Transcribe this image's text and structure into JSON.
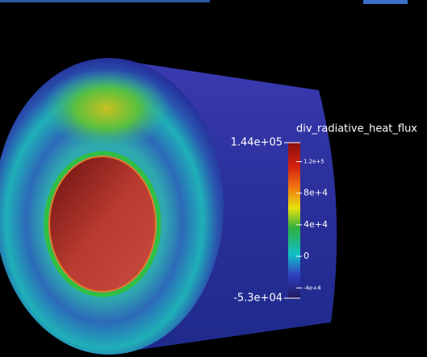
{
  "colorbar": {
    "title": "div_radiative_heat_flux",
    "range": [
      {
        "value": -53000,
        "label": "-5.3e+04"
      },
      {
        "value": 144000,
        "label": "1.44e+05"
      }
    ],
    "ticks": [
      {
        "value": 120000,
        "label": "1.2e+5"
      },
      {
        "value": 80000,
        "label": "8e+4"
      },
      {
        "value": 40000,
        "label": "4e+4"
      },
      {
        "value": 0,
        "label": "0"
      },
      {
        "value": -40000,
        "label": "-4e+4"
      }
    ]
  }
}
